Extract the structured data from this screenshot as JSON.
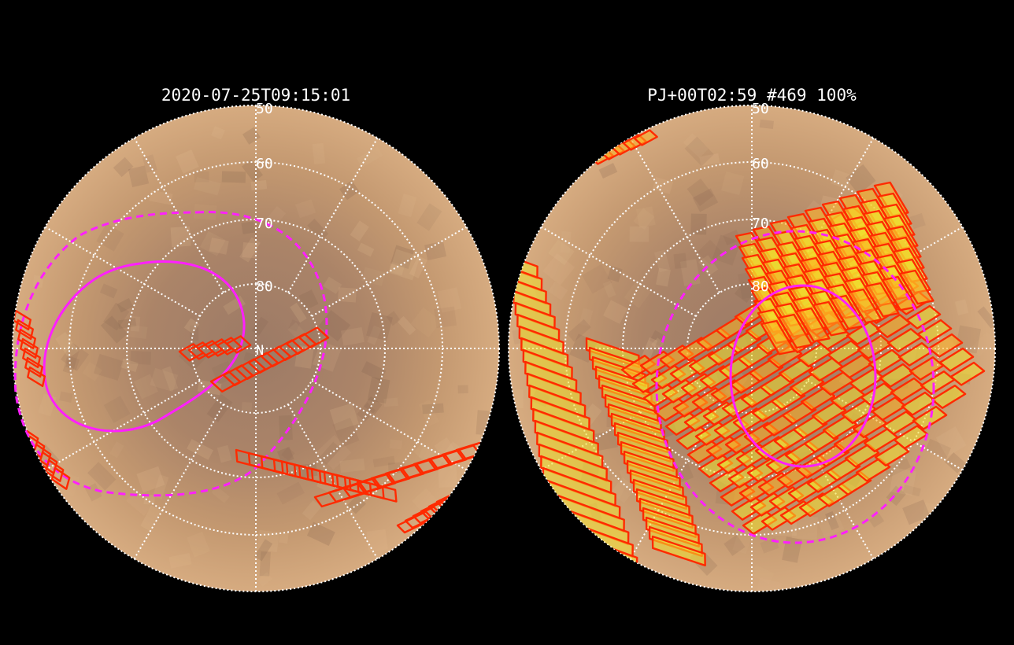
{
  "panels": [
    {
      "id": "left",
      "title": "2020-07-25T09:15:01",
      "lat_labels": [
        "50",
        "60",
        "70",
        "80"
      ],
      "pole_label": "N"
    },
    {
      "id": "right",
      "title": "PJ+00T02:59 #469 100%",
      "lat_labels": [
        "50",
        "60",
        "70",
        "80"
      ],
      "pole_label": ""
    }
  ],
  "colors": {
    "background": "#000000",
    "surface": "#c89a72",
    "surface_dark": "#9a7660",
    "grid": "#ffffff",
    "oval": "#ff1fff",
    "footprint_edge": "#ff2a00",
    "footprint_fill": "#f2e02c"
  }
}
